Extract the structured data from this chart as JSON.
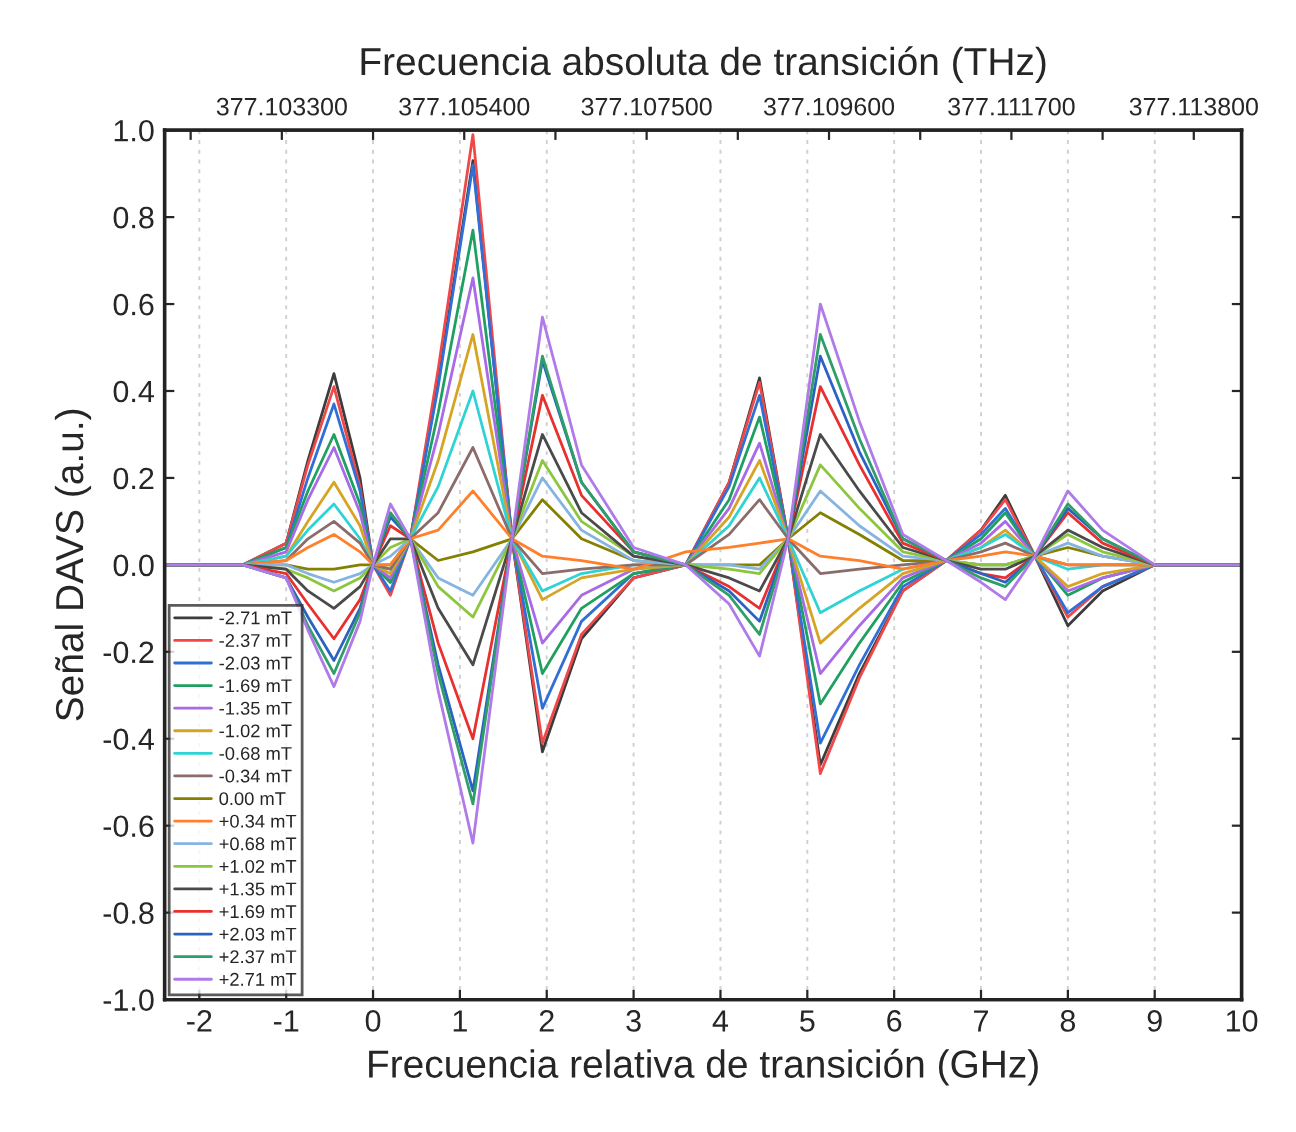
{
  "chart_data": {
    "type": "line",
    "xlabel": "Frecuencia relativa de transición (GHz)",
    "ylabel": "Señal DAVS (a.u.)",
    "x2label": "Frecuencia absoluta de transición (THz)",
    "x": [
      -2.4,
      -1.5,
      -1.0,
      -0.75,
      -0.45,
      -0.15,
      0.0,
      0.2,
      0.43,
      0.75,
      1.15,
      1.6,
      1.95,
      2.4,
      3.0,
      3.6,
      4.1,
      4.45,
      4.78,
      5.15,
      5.6,
      6.1,
      6.6,
      7.0,
      7.28,
      7.62,
      8.0,
      8.4,
      9.0,
      10.0
    ],
    "series": [
      {
        "name": "-2.71 mT",
        "color": "#3c3c3c",
        "values": [
          0,
          0,
          0.05,
          0.24,
          0.44,
          0.2,
          0,
          -0.04,
          0.06,
          0.42,
          0.93,
          0.06,
          -0.43,
          -0.17,
          -0.03,
          0,
          0.19,
          0.43,
          0.06,
          -0.46,
          -0.25,
          -0.06,
          0.01,
          0.08,
          0.16,
          0.02,
          -0.14,
          -0.06,
          0,
          0
        ]
      },
      {
        "name": "-2.37 mT",
        "color": "#f04848",
        "values": [
          0,
          0,
          0.05,
          0.23,
          0.41,
          0.18,
          0,
          -0.07,
          0.06,
          0.45,
          0.99,
          0.06,
          -0.41,
          -0.16,
          -0.03,
          0,
          0.19,
          0.42,
          0.06,
          -0.48,
          -0.26,
          -0.06,
          0.01,
          0.08,
          0.15,
          0.02,
          -0.12,
          -0.05,
          0,
          0
        ]
      },
      {
        "name": "-2.03 mT",
        "color": "#2f6fd6",
        "values": [
          0,
          0,
          0.04,
          0.2,
          0.37,
          0.17,
          0,
          -0.06,
          0.06,
          0.41,
          0.92,
          0.06,
          -0.33,
          -0.13,
          -0.02,
          0,
          0.18,
          0.39,
          0.06,
          -0.41,
          -0.23,
          -0.05,
          0.01,
          0.07,
          0.13,
          0.02,
          -0.11,
          -0.05,
          0,
          0
        ]
      },
      {
        "name": "-1.69 mT",
        "color": "#20a060",
        "values": [
          0,
          0,
          0.04,
          0.17,
          0.3,
          0.14,
          0,
          -0.04,
          0.06,
          0.35,
          0.77,
          0.06,
          -0.25,
          -0.1,
          -0.02,
          0,
          0.15,
          0.34,
          0.06,
          -0.32,
          -0.18,
          -0.04,
          0.01,
          0.06,
          0.12,
          0.02,
          -0.07,
          -0.03,
          0,
          0
        ]
      },
      {
        "name": "-1.35 mT",
        "color": "#a86ae6",
        "values": [
          0,
          0,
          0.03,
          0.15,
          0.27,
          0.12,
          0,
          -0.03,
          0.06,
          0.3,
          0.66,
          0.06,
          -0.18,
          -0.07,
          -0.01,
          0,
          0.13,
          0.28,
          0.06,
          -0.25,
          -0.14,
          -0.03,
          0.01,
          0.05,
          0.1,
          0.02,
          -0.06,
          -0.03,
          0,
          0
        ]
      },
      {
        "name": "-1.02 mT",
        "color": "#d6a422",
        "values": [
          0,
          0,
          0.02,
          0.1,
          0.19,
          0.09,
          0,
          -0.02,
          0.06,
          0.24,
          0.53,
          0.06,
          -0.08,
          -0.03,
          -0.01,
          0,
          0.11,
          0.24,
          0.06,
          -0.18,
          -0.1,
          -0.02,
          0.01,
          0.04,
          0.08,
          0.02,
          -0.05,
          -0.02,
          0,
          0
        ]
      },
      {
        "name": "-0.68 mT",
        "color": "#2ed3d6",
        "values": [
          0,
          0,
          0.02,
          0.08,
          0.14,
          0.06,
          0,
          -0.01,
          0.06,
          0.18,
          0.4,
          0.06,
          -0.06,
          -0.02,
          0,
          0,
          0.09,
          0.2,
          0.06,
          -0.11,
          -0.06,
          -0.01,
          0.01,
          0.04,
          0.07,
          0.02,
          -0.01,
          0,
          0,
          0
        ]
      },
      {
        "name": "-0.34 mT",
        "color": "#8c6b6b",
        "values": [
          0,
          0,
          0.01,
          0.06,
          0.1,
          0.05,
          0,
          -0.01,
          0.06,
          0.12,
          0.27,
          0.06,
          -0.02,
          -0.01,
          0,
          0,
          0.07,
          0.15,
          0.06,
          -0.02,
          -0.01,
          0,
          0.01,
          0.03,
          0.05,
          0.02,
          0,
          0,
          0,
          0
        ]
      },
      {
        "name": "0.00 mT",
        "color": "#858000",
        "values": [
          0,
          0,
          0,
          -0.01,
          -0.01,
          0,
          0,
          0,
          0.06,
          0.01,
          0.03,
          0.06,
          0.15,
          0.06,
          0.01,
          0,
          0,
          0,
          0.06,
          0.12,
          0.07,
          0.01,
          0.01,
          0,
          0,
          0.02,
          0.04,
          0.02,
          0,
          0
        ]
      },
      {
        "name": "+0.34 mT",
        "color": "#ff7f2a",
        "values": [
          0,
          0,
          0.01,
          0.04,
          0.07,
          0.03,
          0,
          0,
          0.06,
          0.08,
          0.17,
          0.06,
          0.02,
          0.01,
          -0.01,
          0.03,
          0.04,
          0.05,
          0.06,
          0.02,
          0.01,
          -0.01,
          0.01,
          0.02,
          0.03,
          0.02,
          0,
          0,
          0,
          0
        ]
      },
      {
        "name": "+0.68 mT",
        "color": "#86b4e2",
        "values": [
          0,
          0,
          0,
          -0.02,
          -0.04,
          -0.02,
          0,
          0.02,
          0.06,
          -0.03,
          -0.07,
          0.06,
          0.2,
          0.08,
          0.01,
          0,
          0,
          -0.01,
          0.06,
          0.17,
          0.09,
          0.02,
          0.01,
          0,
          0,
          0.02,
          0.05,
          0.02,
          0,
          0
        ]
      },
      {
        "name": "+1.02 mT",
        "color": "#8cc63f",
        "values": [
          0,
          0,
          -0.01,
          -0.03,
          -0.06,
          -0.03,
          0,
          0.04,
          0.06,
          -0.05,
          -0.12,
          0.06,
          0.24,
          0.1,
          0.02,
          0,
          -0.01,
          -0.02,
          0.06,
          0.23,
          0.13,
          0.03,
          0.01,
          0,
          0,
          0.02,
          0.07,
          0.03,
          0,
          0
        ]
      },
      {
        "name": "+1.35 mT",
        "color": "#4a4a4a",
        "values": [
          0,
          0,
          -0.01,
          -0.06,
          -0.1,
          -0.05,
          0,
          0.06,
          0.06,
          -0.1,
          -0.23,
          0.06,
          0.3,
          0.12,
          0.02,
          0,
          -0.03,
          -0.06,
          0.06,
          0.3,
          0.17,
          0.04,
          0.01,
          -0.01,
          -0.01,
          0.02,
          0.08,
          0.04,
          0,
          0
        ]
      },
      {
        "name": "+1.69 mT",
        "color": "#e8302f",
        "values": [
          0,
          0,
          -0.02,
          -0.09,
          -0.17,
          -0.08,
          0,
          0.09,
          0.06,
          -0.18,
          -0.4,
          0.06,
          0.39,
          0.16,
          0.03,
          0,
          -0.05,
          -0.1,
          0.06,
          0.41,
          0.23,
          0.05,
          0.01,
          -0.02,
          -0.03,
          0.02,
          0.12,
          0.05,
          0,
          0
        ]
      },
      {
        "name": "+2.03 mT",
        "color": "#2a62c4",
        "values": [
          0,
          0,
          -0.03,
          -0.12,
          -0.22,
          -0.1,
          0,
          0.11,
          0.06,
          -0.23,
          -0.52,
          0.06,
          0.47,
          0.19,
          0.03,
          0,
          -0.06,
          -0.13,
          0.06,
          0.48,
          0.26,
          0.06,
          0.01,
          -0.02,
          -0.04,
          0.02,
          0.13,
          0.06,
          0,
          0
        ]
      },
      {
        "name": "+2.37 mT",
        "color": "#2f9e68",
        "values": [
          0,
          0,
          -0.03,
          -0.14,
          -0.25,
          -0.11,
          0,
          0.12,
          0.06,
          -0.25,
          -0.55,
          0.06,
          0.48,
          0.19,
          0.03,
          0,
          -0.07,
          -0.16,
          0.06,
          0.53,
          0.29,
          0.06,
          0.01,
          -0.03,
          -0.05,
          0.02,
          0.14,
          0.06,
          0,
          0
        ]
      },
      {
        "name": "+2.71 mT",
        "color": "#b07ae8",
        "values": [
          0,
          0,
          -0.03,
          -0.15,
          -0.28,
          -0.13,
          0,
          0.14,
          0.06,
          -0.29,
          -0.64,
          0.06,
          0.57,
          0.23,
          0.04,
          0,
          -0.09,
          -0.21,
          0.06,
          0.6,
          0.33,
          0.07,
          0.01,
          -0.04,
          -0.08,
          0.02,
          0.17,
          0.08,
          0,
          0
        ]
      }
    ],
    "xlim": [
      -2.4,
      10
    ],
    "xticks": [
      -2,
      -1,
      0,
      1,
      2,
      3,
      4,
      5,
      6,
      7,
      8,
      9,
      10
    ],
    "ylim": [
      -1.0,
      1.0
    ],
    "yticks": [
      {
        "value": -1.0,
        "label": "-1.0"
      },
      {
        "value": -0.8,
        "label": "-0.8"
      },
      {
        "value": -0.6,
        "label": "-0.6"
      },
      {
        "value": -0.4,
        "label": "-0.4"
      },
      {
        "value": -0.2,
        "label": "-0.2"
      },
      {
        "value": 0.0,
        "label": "0.0"
      },
      {
        "value": 0.2,
        "label": "0.2"
      },
      {
        "value": 0.4,
        "label": "0.4"
      },
      {
        "value": 0.6,
        "label": "0.6"
      },
      {
        "value": 0.8,
        "label": "0.8"
      },
      {
        "value": 1.0,
        "label": "1.0"
      }
    ],
    "x2lim": [
      377.10195,
      377.11435
    ],
    "x2ticks": [
      {
        "value": 377.10225,
        "label": null
      },
      {
        "value": 377.1033,
        "label": "377.103300"
      },
      {
        "value": 377.10435,
        "label": null
      },
      {
        "value": 377.1054,
        "label": "377.105400"
      },
      {
        "value": 377.10645,
        "label": null
      },
      {
        "value": 377.1075,
        "label": "377.107500"
      },
      {
        "value": 377.10855,
        "label": null
      },
      {
        "value": 377.1096,
        "label": "377.109600"
      },
      {
        "value": 377.11065,
        "label": null
      },
      {
        "value": 377.1117,
        "label": "377.111700"
      },
      {
        "value": 377.11275,
        "label": null
      },
      {
        "value": 377.1138,
        "label": "377.113800"
      }
    ],
    "grid": "x",
    "legend": "bottom left"
  }
}
